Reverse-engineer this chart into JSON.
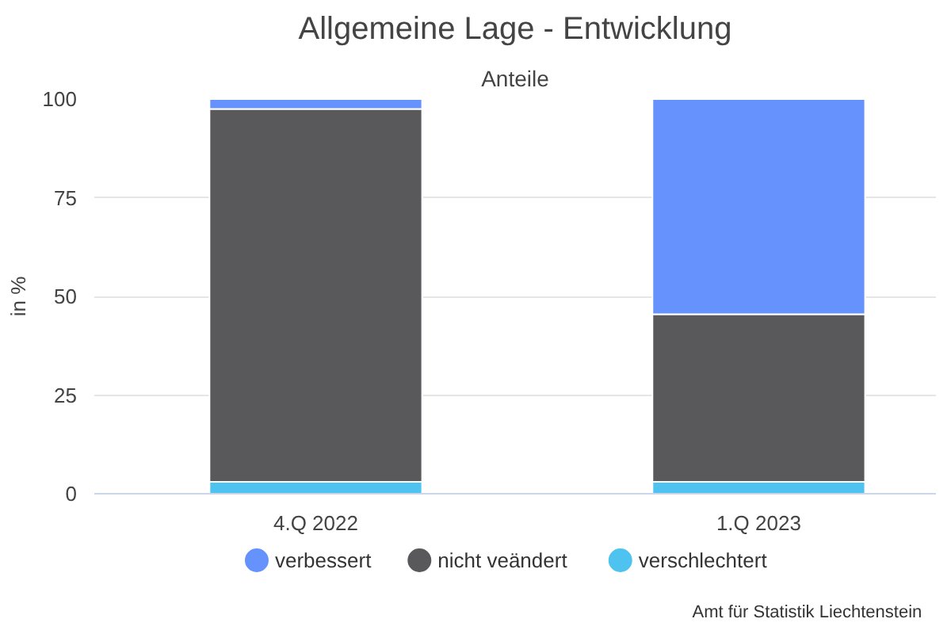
{
  "chart_data": {
    "type": "bar",
    "title": "Allgemeine Lage - Entwicklung",
    "subtitle": "Anteile",
    "ylabel": "in %",
    "categories": [
      "4.Q 2022",
      "1.Q 2023"
    ],
    "stacked": true,
    "series": [
      {
        "name": "verschlechtert",
        "color": "#4fc3f0",
        "values": [
          3,
          3
        ]
      },
      {
        "name": "nicht veändert",
        "color": "#59595b",
        "values": [
          94.5,
          42.5
        ]
      },
      {
        "name": "verbessert",
        "color": "#6592fd",
        "values": [
          2.5,
          54.5
        ]
      }
    ],
    "ylim": [
      0,
      100
    ],
    "yticks": [
      0,
      25,
      50,
      75,
      100
    ],
    "grid": "y",
    "legend": "bottom",
    "annotations": [
      "Amt für Statistik Liechtenstein"
    ]
  }
}
